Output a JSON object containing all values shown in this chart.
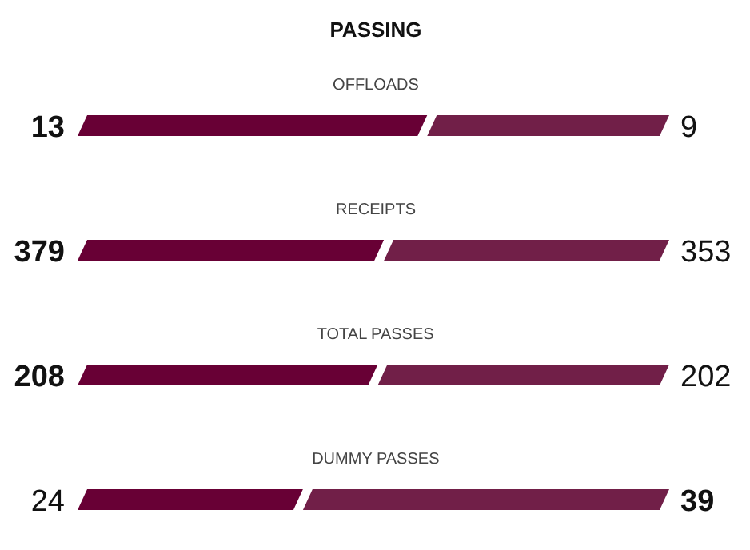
{
  "chart_data": [
    {
      "type": "bar",
      "orientation": "horizontal",
      "stacked": true,
      "title": "PASSING",
      "categories": [
        "OFFLOADS"
      ],
      "data_labels": true,
      "series": [
        {
          "color": "#680035",
          "values": [
            13
          ]
        },
        {
          "color": "#711f48",
          "values": [
            9
          ]
        }
      ]
    },
    {
      "type": "bar",
      "orientation": "horizontal",
      "stacked": true,
      "categories": [
        "RECEIPTS"
      ],
      "data_labels": true,
      "series": [
        {
          "color": "#680035",
          "values": [
            379
          ]
        },
        {
          "color": "#711f48",
          "values": [
            353
          ]
        }
      ]
    },
    {
      "type": "bar",
      "orientation": "horizontal",
      "stacked": true,
      "categories": [
        "TOTAL PASSES"
      ],
      "data_labels": true,
      "series": [
        {
          "color": "#680035",
          "values": [
            208
          ]
        },
        {
          "color": "#711f48",
          "values": [
            202
          ]
        }
      ]
    },
    {
      "type": "bar",
      "orientation": "horizontal",
      "stacked": true,
      "categories": [
        "DUMMY PASSES"
      ],
      "data_labels": true,
      "series": [
        {
          "color": "#680035",
          "values": [
            24
          ]
        },
        {
          "color": "#711f48",
          "values": [
            39
          ]
        }
      ]
    }
  ]
}
